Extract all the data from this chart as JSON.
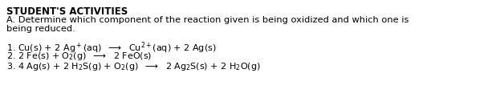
{
  "title": "STUDENT'S ACTIVITIES",
  "line_A": "A. Determine which component of the reaction given is being oxidized and which one is",
  "line_A2": "being reduced.",
  "bg_color": "#ffffff",
  "text_color": "#000000",
  "font_size_title": 8.5,
  "font_size_body": 8.2,
  "font_size_rxn": 8.0,
  "font_size_sub": 6.0,
  "fig_width": 6.23,
  "fig_height": 1.37,
  "dpi": 100
}
